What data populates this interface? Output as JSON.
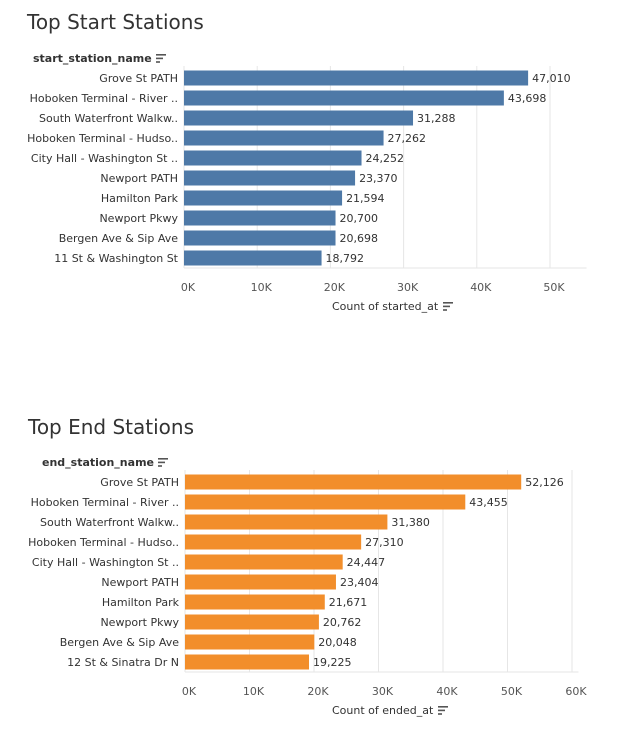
{
  "colors": {
    "start_bar": "#4e79a7",
    "end_bar": "#f28e2b",
    "text": "#333333",
    "tick_text": "#555555",
    "gridline": "#e6e6e6"
  },
  "icons": {
    "sort": "sort-descending-icon"
  },
  "chart_data": [
    {
      "type": "bar",
      "orientation": "horizontal",
      "title": "Top Start Stations",
      "row_header": "start_station_name",
      "xlabel": "Count of started_at",
      "xlim": [
        0,
        55000
      ],
      "xticks": [
        0,
        10000,
        20000,
        30000,
        40000,
        50000
      ],
      "xtick_labels": [
        "0K",
        "10K",
        "20K",
        "30K",
        "40K",
        "50K"
      ],
      "grid": true,
      "categories": [
        "Grove St PATH",
        "Hoboken Terminal - River ..",
        "South Waterfront Walkw..",
        "Hoboken Terminal - Hudso..",
        "City Hall - Washington St ..",
        "Newport PATH",
        "Hamilton Park",
        "Newport Pkwy",
        "Bergen Ave & Sip Ave",
        "11 St & Washington St"
      ],
      "values": [
        47010,
        43698,
        31288,
        27262,
        24252,
        23370,
        21594,
        20700,
        20698,
        18792
      ],
      "value_labels": [
        "47,010",
        "43,698",
        "31,288",
        "27,262",
        "24,252",
        "23,370",
        "21,594",
        "20,700",
        "20,698",
        "18,792"
      ],
      "color": "#4e79a7"
    },
    {
      "type": "bar",
      "orientation": "horizontal",
      "title": "Top End Stations",
      "row_header": "end_station_name",
      "xlabel": "Count of ended_at",
      "xlim": [
        0,
        61000
      ],
      "xticks": [
        0,
        10000,
        20000,
        30000,
        40000,
        50000,
        60000
      ],
      "xtick_labels": [
        "0K",
        "10K",
        "20K",
        "30K",
        "40K",
        "50K",
        "60K"
      ],
      "grid": true,
      "categories": [
        "Grove St PATH",
        "Hoboken Terminal - River ..",
        "South Waterfront Walkw..",
        "Hoboken Terminal - Hudso..",
        "City Hall - Washington St ..",
        "Newport PATH",
        "Hamilton Park",
        "Newport Pkwy",
        "Bergen Ave & Sip Ave",
        "12 St & Sinatra Dr N"
      ],
      "values": [
        52126,
        43455,
        31380,
        27310,
        24447,
        23404,
        21671,
        20762,
        20048,
        19225
      ],
      "value_labels": [
        "52,126",
        "43,455",
        "31,380",
        "27,310",
        "24,447",
        "23,404",
        "21,671",
        "20,762",
        "20,048",
        "19,225"
      ],
      "color": "#f28e2b"
    }
  ]
}
